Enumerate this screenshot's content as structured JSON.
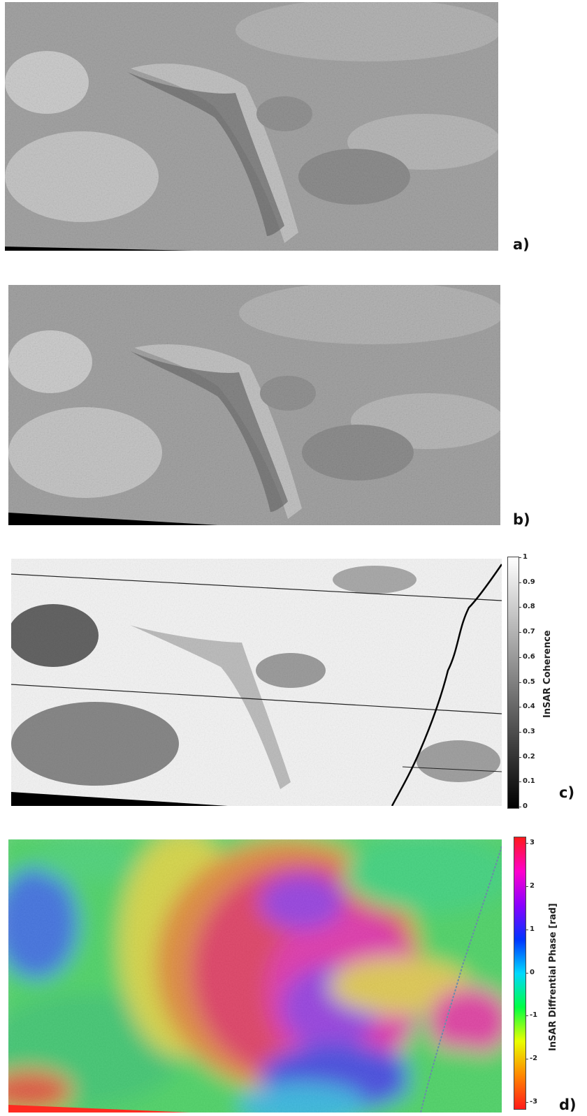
{
  "panels": [
    {
      "label": "a)",
      "image": "SAR amplitude image (grayscale) of desert terrain"
    },
    {
      "label": "b)",
      "image": "SAR amplitude image (grayscale) of desert terrain"
    },
    {
      "label": "c)",
      "image": "InSAR coherence map (grayscale)",
      "colorbar": {
        "title": "InSAR Coherence",
        "ticks": [
          "1",
          "0.9",
          "0.8",
          "0.7",
          "0.6",
          "0.5",
          "0.4",
          "0.3",
          "0.2",
          "0.1",
          "0"
        ],
        "colormap": [
          "#ffffff",
          "#000000"
        ]
      }
    },
    {
      "label": "d)",
      "image": "InSAR differential phase map (rainbow)",
      "colorbar": {
        "title": "InSAR Diffrential Phase [rad]",
        "ticks": [
          "3",
          "2",
          "1",
          "0",
          "-1",
          "-2",
          "-3"
        ],
        "colormap": [
          "#ff1a1a",
          "#ff00cc",
          "#8a00ff",
          "#0033ff",
          "#00d8ff",
          "#00ff44",
          "#e8ff00",
          "#ff8800",
          "#ff1a1a"
        ]
      }
    }
  ]
}
